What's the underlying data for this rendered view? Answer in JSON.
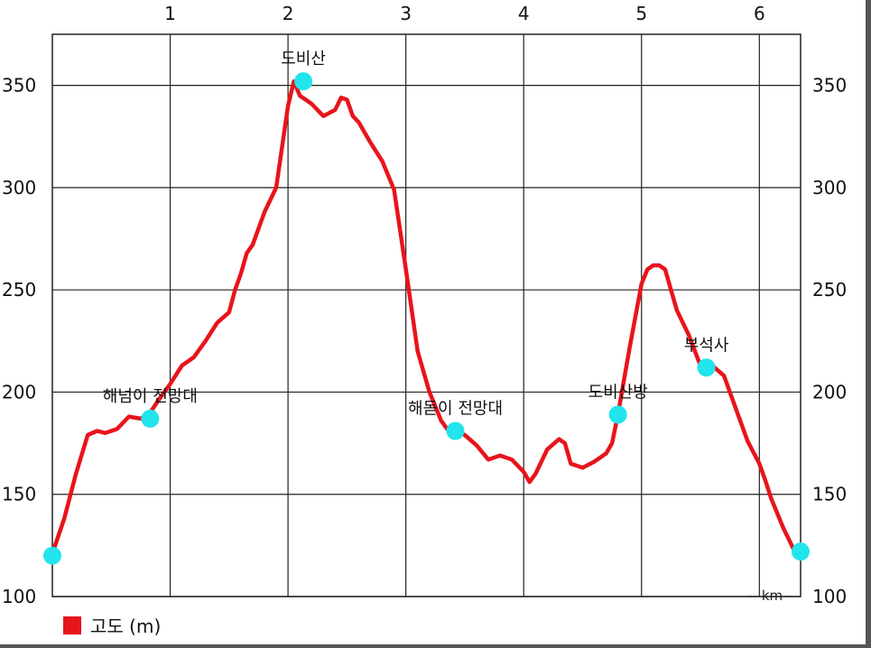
{
  "chart_data": {
    "type": "line",
    "title": "",
    "xlabel": "-- km--",
    "ylabel": "",
    "xlim": [
      0,
      6.35
    ],
    "ylim": [
      100,
      375
    ],
    "x_ticks": [
      1,
      2,
      3,
      4,
      5,
      6
    ],
    "y_ticks": [
      100,
      150,
      200,
      250,
      300,
      350
    ],
    "grid": true,
    "legend": {
      "position": "bottom-left",
      "entries": [
        {
          "label": "고도 (m)",
          "color": "#e8141c"
        }
      ]
    },
    "series": [
      {
        "name": "고도 (m)",
        "color": "#e8141c",
        "x": [
          0,
          0.1,
          0.2,
          0.3,
          0.38,
          0.45,
          0.55,
          0.65,
          0.75,
          0.83,
          0.9,
          1.0,
          1.1,
          1.2,
          1.3,
          1.4,
          1.5,
          1.55,
          1.6,
          1.65,
          1.7,
          1.8,
          1.9,
          2.0,
          2.05,
          2.1,
          2.15,
          2.2,
          2.3,
          2.4,
          2.45,
          2.5,
          2.55,
          2.6,
          2.7,
          2.8,
          2.9,
          3.0,
          3.1,
          3.2,
          3.3,
          3.35,
          3.42,
          3.5,
          3.6,
          3.7,
          3.8,
          3.9,
          4.0,
          4.05,
          4.1,
          4.2,
          4.3,
          4.35,
          4.4,
          4.5,
          4.6,
          4.7,
          4.75,
          4.8,
          4.9,
          5.0,
          5.05,
          5.1,
          5.15,
          5.2,
          5.25,
          5.3,
          5.4,
          5.5,
          5.55,
          5.6,
          5.7,
          5.8,
          5.9,
          6.0,
          6.05,
          6.1,
          6.2,
          6.3,
          6.35
        ],
        "values": [
          121,
          138,
          160,
          179,
          181,
          180,
          182,
          188,
          187,
          190,
          196,
          204,
          213,
          217,
          225,
          234,
          239,
          250,
          258,
          268,
          272,
          288,
          300,
          340,
          352,
          345,
          343,
          341,
          335,
          338,
          344,
          343,
          335,
          332,
          322,
          313,
          299,
          260,
          220,
          200,
          186,
          182,
          181,
          179,
          174,
          167,
          169,
          167,
          161,
          156,
          160,
          172,
          177,
          175,
          165,
          163,
          166,
          170,
          175,
          189,
          222,
          253,
          260,
          262,
          262,
          260,
          250,
          240,
          228,
          213,
          214,
          213,
          208,
          192,
          176,
          165,
          157,
          148,
          134,
          122,
          121
        ]
      }
    ],
    "annotations": [
      {
        "label": "",
        "x": 0.0,
        "y": 120
      },
      {
        "label": "해넘이 전망대",
        "x": 0.83,
        "y": 187
      },
      {
        "label": "도비산",
        "x": 2.13,
        "y": 352
      },
      {
        "label": "해돋이 전망대",
        "x": 3.42,
        "y": 181
      },
      {
        "label": "도비산방",
        "x": 4.8,
        "y": 189
      },
      {
        "label": "부석사",
        "x": 5.55,
        "y": 212
      },
      {
        "label": "",
        "x": 6.35,
        "y": 122
      }
    ],
    "marker_color": "#22e4ec",
    "grid_color": "#222222"
  }
}
